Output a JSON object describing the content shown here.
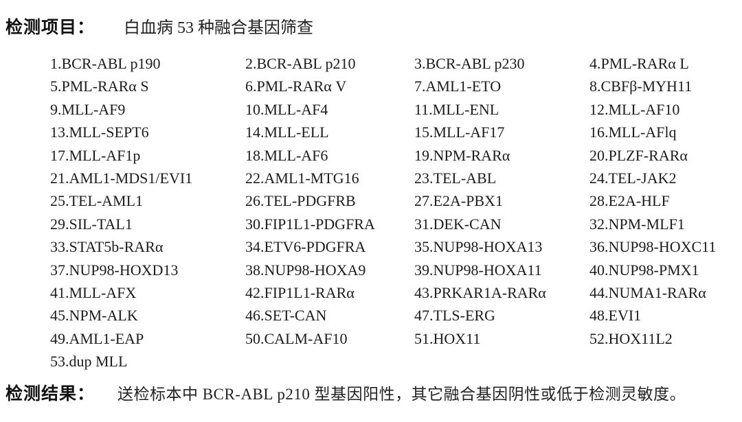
{
  "header": {
    "label": "检测项目：",
    "value": "白血病 53 种融合基因筛查"
  },
  "genes": [
    "1.BCR-ABL p190",
    "2.BCR-ABL p210",
    "3.BCR-ABL p230",
    "4.PML-RARα L",
    "5.PML-RARα S",
    "6.PML-RARα V",
    "7.AML1-ETO",
    "8.CBFβ-MYH11",
    "9.MLL-AF9",
    "10.MLL-AF4",
    "11.MLL-ENL",
    "12.MLL-AF10",
    "13.MLL-SEPT6",
    "14.MLL-ELL",
    "15.MLL-AF17",
    "16.MLL-AFlq",
    "17.MLL-AF1p",
    "18.MLL-AF6",
    "19.NPM-RARα",
    "20.PLZF-RARα",
    "21.AML1-MDS1/EVI1",
    "22.AML1-MTG16",
    "23.TEL-ABL",
    "24.TEL-JAK2",
    "25.TEL-AML1",
    "26.TEL-PDGFRB",
    "27.E2A-PBX1",
    "28.E2A-HLF",
    "29.SIL-TAL1",
    "30.FIP1L1-PDGFRA",
    "31.DEK-CAN",
    "32.NPM-MLF1",
    "33.STAT5b-RARα",
    "34.ETV6-PDGFRA",
    "35.NUP98-HOXA13",
    "36.NUP98-HOXC11",
    "37.NUP98-HOXD13",
    "38.NUP98-HOXA9",
    "39.NUP98-HOXA11",
    "40.NUP98-PMX1",
    "41.MLL-AFX",
    "42.FIP1L1-RARα",
    "43.PRKAR1A-RARα",
    "44.NUMA1-RARα",
    "45.NPM-ALK",
    "46.SET-CAN",
    "47.TLS-ERG",
    "48.EVI1",
    "49.AML1-EAP",
    "50.CALM-AF10",
    "51.HOX11",
    "52.HOX11L2",
    "53.dup MLL"
  ],
  "result": {
    "label": "检测结果：",
    "value": "送检标本中 BCR-ABL p210 型基因阳性，其它融合基因阴性或低于检测灵敏度。"
  }
}
